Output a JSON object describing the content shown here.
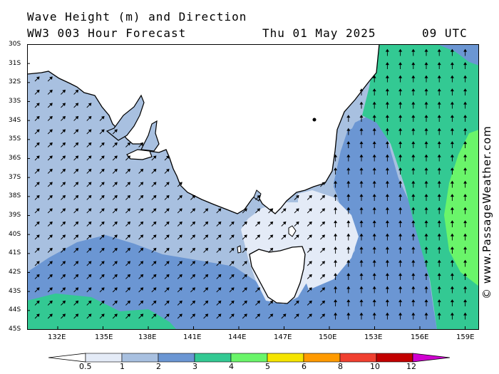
{
  "header": {
    "line1": "Wave Height (m) and Direction",
    "model": "WW3 003 Hour Forecast",
    "date": "Thu 01 May 2025",
    "time": "09 UTC"
  },
  "credit": "© www.PassageWeather.com",
  "map": {
    "lat_labels": [
      "30S",
      "31S",
      "32S",
      "33S",
      "34S",
      "35S",
      "36S",
      "37S",
      "38S",
      "39S",
      "40S",
      "41S",
      "42S",
      "43S",
      "44S",
      "45S"
    ],
    "lon_labels": [
      "132E",
      "135E",
      "138E",
      "141E",
      "144E",
      "147E",
      "150E",
      "153E",
      "156E",
      "159E"
    ],
    "wave_direction_arrows": "NE (southwest swell), N over east coast and Tasman Sea",
    "region": "Southeast Australia, Bass Strait, Tasmania, Tasman Sea"
  },
  "colorbar": {
    "ticks": [
      "0.5",
      "1",
      "2",
      "3",
      "4",
      "5",
      "6",
      "8",
      "10",
      "12"
    ],
    "colors": [
      "#e4ebf7",
      "#a8c0e0",
      "#6b96d3",
      "#33c993",
      "#6af56a",
      "#f5e400",
      "#ff9a00",
      "#f04030",
      "#c20000",
      "#d000d0"
    ],
    "unit": "m"
  }
}
